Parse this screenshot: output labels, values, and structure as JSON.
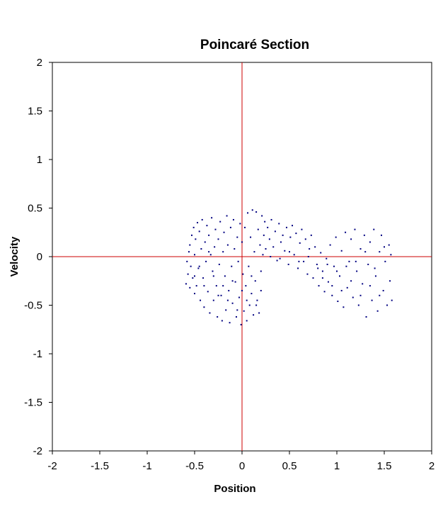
{
  "chart_data": {
    "type": "scatter",
    "title": "Poincaré Section",
    "xlabel": "Position",
    "ylabel": "Velocity",
    "xlim": [
      -2,
      2
    ],
    "ylim": [
      -2,
      2
    ],
    "x_ticks": [
      "-2",
      "-1.5",
      "-1",
      "-0.5",
      "0",
      "0.5",
      "1",
      "1.5",
      "2"
    ],
    "y_ticks": [
      "2",
      "1.5",
      "1",
      "0.5",
      "0",
      "-0.5",
      "-1",
      "-1.5",
      "-2"
    ],
    "grid": false,
    "legend": "none",
    "reference_lines": {
      "x": 0,
      "y": 0
    },
    "colors": {
      "points": "#000080",
      "reference_lines": "#cc0000",
      "frame": "#000000"
    },
    "series": [
      {
        "points": [
          [
            -0.59,
            -0.28
          ],
          [
            -0.58,
            -0.05
          ],
          [
            -0.57,
            -0.18
          ],
          [
            -0.56,
            0.05
          ],
          [
            -0.55,
            -0.32
          ],
          [
            -0.55,
            0.12
          ],
          [
            -0.54,
            -0.1
          ],
          [
            -0.53,
            0.22
          ],
          [
            -0.52,
            -0.22
          ],
          [
            -0.51,
            0.3
          ],
          [
            -0.5,
            -0.38
          ],
          [
            -0.5,
            0.02
          ],
          [
            -0.49,
            0.18
          ],
          [
            -0.48,
            -0.3
          ],
          [
            -0.47,
            0.35
          ],
          [
            -0.46,
            -0.12
          ],
          [
            -0.45,
            0.26
          ],
          [
            -0.44,
            -0.45
          ],
          [
            -0.43,
            0.08
          ],
          [
            -0.42,
            0.38
          ],
          [
            -0.41,
            -0.22
          ],
          [
            -0.4,
            -0.52
          ],
          [
            -0.39,
            0.15
          ],
          [
            -0.38,
            -0.05
          ],
          [
            -0.37,
            0.32
          ],
          [
            -0.36,
            -0.36
          ],
          [
            -0.35,
            0.22
          ],
          [
            -0.34,
            -0.58
          ],
          [
            -0.33,
            0.02
          ],
          [
            -0.32,
            0.4
          ],
          [
            -0.31,
            -0.15
          ],
          [
            -0.3,
            -0.45
          ],
          [
            -0.29,
            0.1
          ],
          [
            -0.28,
            0.28
          ],
          [
            -0.27,
            -0.3
          ],
          [
            -0.26,
            -0.62
          ],
          [
            -0.25,
            0.18
          ],
          [
            -0.24,
            -0.08
          ],
          [
            -0.23,
            0.36
          ],
          [
            -0.22,
            -0.4
          ],
          [
            -0.21,
            -0.66
          ],
          [
            -0.2,
            0.05
          ],
          [
            -0.19,
            0.25
          ],
          [
            -0.18,
            -0.2
          ],
          [
            -0.17,
            -0.55
          ],
          [
            -0.16,
            0.42
          ],
          [
            -0.15,
            0.12
          ],
          [
            -0.14,
            -0.35
          ],
          [
            -0.13,
            -0.68
          ],
          [
            -0.12,
            0.3
          ],
          [
            -0.11,
            -0.1
          ],
          [
            -0.1,
            -0.48
          ],
          [
            -0.09,
            0.38
          ],
          [
            -0.08,
            0.08
          ],
          [
            -0.07,
            -0.26
          ],
          [
            -0.06,
            -0.62
          ],
          [
            -0.05,
            0.2
          ],
          [
            -0.04,
            -0.05
          ],
          [
            -0.03,
            -0.42
          ],
          [
            -0.02,
            0.34
          ],
          [
            -0.01,
            -0.7
          ],
          [
            0.0,
            0.15
          ],
          [
            0.01,
            -0.18
          ],
          [
            0.02,
            -0.56
          ],
          [
            0.03,
            0.3
          ],
          [
            0.04,
            -0.3
          ],
          [
            0.05,
            -0.66
          ],
          [
            0.06,
            0.45
          ],
          [
            0.07,
            -0.1
          ],
          [
            0.08,
            -0.5
          ],
          [
            0.09,
            0.2
          ],
          [
            0.1,
            -0.38
          ],
          [
            0.11,
            0.48
          ],
          [
            0.12,
            -0.6
          ],
          [
            0.13,
            0.05
          ],
          [
            0.14,
            -0.25
          ],
          [
            0.15,
            0.46
          ],
          [
            0.16,
            -0.45
          ],
          [
            0.17,
            0.28
          ],
          [
            0.18,
            -0.58
          ],
          [
            0.19,
            0.12
          ],
          [
            0.2,
            -0.35
          ],
          [
            0.21,
            0.42
          ],
          [
            0.22,
            0.02
          ],
          [
            0.23,
            0.22
          ],
          [
            0.24,
            0.36
          ],
          [
            0.25,
            0.08
          ],
          [
            0.27,
            0.3
          ],
          [
            0.29,
            0.18
          ],
          [
            0.31,
            0.38
          ],
          [
            0.33,
            0.1
          ],
          [
            0.35,
            0.26
          ],
          [
            0.37,
            -0.04
          ],
          [
            0.39,
            0.34
          ],
          [
            0.41,
            0.15
          ],
          [
            0.43,
            0.22
          ],
          [
            0.45,
            0.06
          ],
          [
            0.47,
            0.3
          ],
          [
            0.49,
            -0.08
          ],
          [
            0.51,
            0.2
          ],
          [
            0.53,
            0.32
          ],
          [
            0.55,
            0.02
          ],
          [
            0.57,
            0.24
          ],
          [
            0.59,
            -0.12
          ],
          [
            0.61,
            0.14
          ],
          [
            0.63,
            0.28
          ],
          [
            0.65,
            -0.05
          ],
          [
            0.67,
            0.18
          ],
          [
            0.69,
            -0.18
          ],
          [
            0.71,
            0.08
          ],
          [
            0.73,
            0.22
          ],
          [
            0.75,
            -0.22
          ],
          [
            0.77,
            0.1
          ],
          [
            0.79,
            -0.08
          ],
          [
            0.81,
            -0.3
          ],
          [
            0.83,
            0.04
          ],
          [
            0.85,
            -0.15
          ],
          [
            0.87,
            -0.36
          ],
          [
            0.89,
            -0.02
          ],
          [
            0.91,
            -0.26
          ],
          [
            0.93,
            0.12
          ],
          [
            0.95,
            -0.4
          ],
          [
            0.97,
            -0.1
          ],
          [
            0.99,
            0.2
          ],
          [
            1.01,
            -0.46
          ],
          [
            1.03,
            -0.2
          ],
          [
            1.05,
            0.06
          ],
          [
            1.07,
            -0.52
          ],
          [
            1.09,
            0.25
          ],
          [
            1.11,
            -0.32
          ],
          [
            1.13,
            -0.05
          ],
          [
            1.15,
            0.18
          ],
          [
            1.17,
            -0.42
          ],
          [
            1.19,
            0.28
          ],
          [
            1.21,
            -0.15
          ],
          [
            1.23,
            -0.5
          ],
          [
            1.25,
            0.08
          ],
          [
            1.27,
            -0.28
          ],
          [
            1.29,
            0.22
          ],
          [
            1.31,
            -0.62
          ],
          [
            1.33,
            -0.08
          ],
          [
            1.35,
            0.15
          ],
          [
            1.37,
            -0.45
          ],
          [
            1.39,
            0.28
          ],
          [
            1.41,
            -0.2
          ],
          [
            1.43,
            -0.56
          ],
          [
            1.45,
            0.05
          ],
          [
            1.47,
            0.22
          ],
          [
            1.49,
            -0.35
          ],
          [
            1.51,
            -0.05
          ],
          [
            1.53,
            -0.5
          ],
          [
            1.55,
            0.12
          ],
          [
            1.56,
            -0.25
          ],
          [
            1.57,
            0.02
          ],
          [
            1.58,
            -0.45
          ],
          [
            -0.5,
            -0.2
          ],
          [
            -0.45,
            -0.1
          ],
          [
            -0.4,
            -0.3
          ],
          [
            -0.35,
            0.05
          ],
          [
            -0.3,
            -0.2
          ],
          [
            -0.25,
            -0.4
          ],
          [
            -0.2,
            -0.3
          ],
          [
            -0.15,
            -0.45
          ],
          [
            -0.1,
            -0.25
          ],
          [
            -0.05,
            -0.55
          ],
          [
            0.0,
            -0.35
          ],
          [
            0.05,
            -0.45
          ],
          [
            0.1,
            -0.2
          ],
          [
            0.15,
            -0.5
          ],
          [
            0.2,
            -0.15
          ],
          [
            0.3,
            0.0
          ],
          [
            0.4,
            -0.02
          ],
          [
            0.5,
            0.05
          ],
          [
            0.6,
            -0.05
          ],
          [
            0.7,
            0.0
          ],
          [
            0.8,
            -0.12
          ],
          [
            0.9,
            -0.08
          ],
          [
            1.0,
            -0.15
          ],
          [
            1.1,
            -0.1
          ],
          [
            1.2,
            -0.05
          ],
          [
            1.3,
            0.05
          ],
          [
            1.4,
            -0.12
          ],
          [
            1.5,
            0.1
          ],
          [
            0.85,
            -0.22
          ],
          [
            0.95,
            -0.3
          ],
          [
            1.05,
            -0.35
          ],
          [
            1.15,
            -0.25
          ],
          [
            1.25,
            -0.4
          ],
          [
            1.35,
            -0.3
          ],
          [
            1.45,
            -0.4
          ]
        ]
      }
    ]
  }
}
